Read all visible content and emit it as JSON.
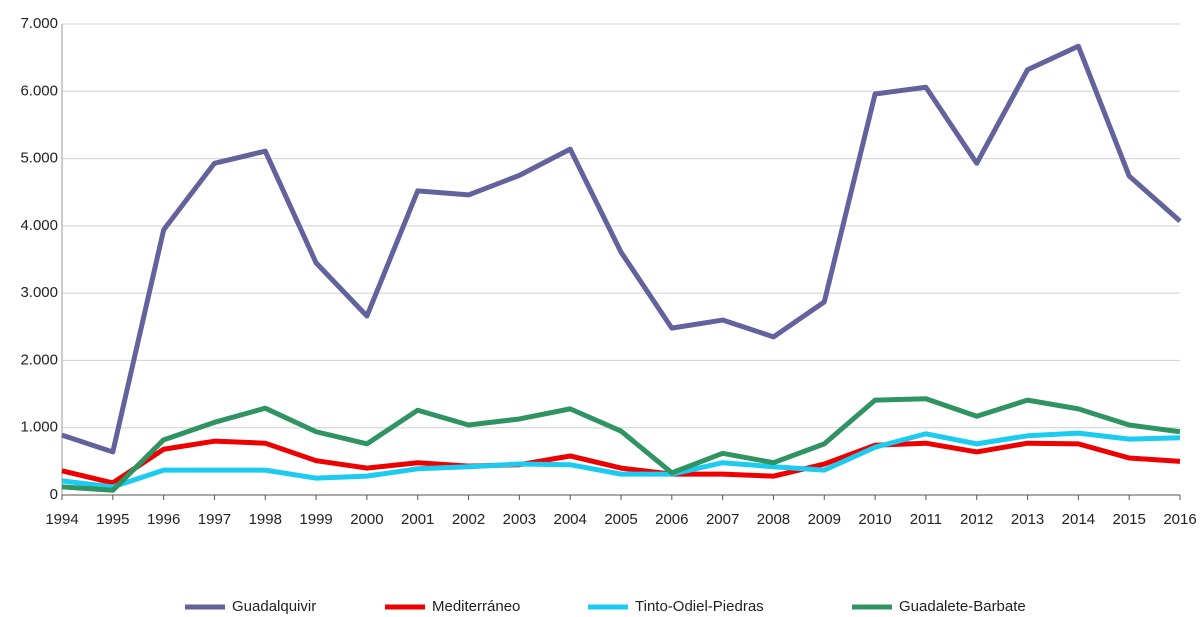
{
  "chart_data": {
    "type": "line",
    "categories": [
      "1994",
      "1995",
      "1996",
      "1997",
      "1998",
      "1999",
      "2000",
      "2001",
      "2002",
      "2003",
      "2004",
      "2005",
      "2006",
      "2007",
      "2008",
      "2009",
      "2010",
      "2011",
      "2012",
      "2013",
      "2014",
      "2015",
      "2016"
    ],
    "series": [
      {
        "name": "Guadalquivir",
        "color": "#62629c",
        "values": [
          890,
          640,
          3940,
          4930,
          5110,
          3450,
          2660,
          4520,
          4460,
          4750,
          5140,
          3610,
          2480,
          2600,
          2350,
          2870,
          5960,
          6060,
          4930,
          6320,
          6670,
          4740,
          4070
        ]
      },
      {
        "name": "Mediterráneo",
        "color": "#ee0000",
        "values": [
          360,
          180,
          680,
          800,
          770,
          510,
          400,
          480,
          430,
          450,
          580,
          400,
          310,
          310,
          280,
          460,
          740,
          770,
          640,
          770,
          760,
          550,
          500
        ]
      },
      {
        "name": "Tinto-Odiel-Piedras",
        "color": "#1ccbf0",
        "values": [
          210,
          120,
          370,
          370,
          370,
          250,
          280,
          390,
          420,
          460,
          450,
          310,
          310,
          480,
          420,
          370,
          710,
          910,
          760,
          880,
          920,
          830,
          850
        ]
      },
      {
        "name": "Guadalete-Barbate",
        "color": "#2f9462",
        "values": [
          120,
          70,
          820,
          1080,
          1290,
          940,
          760,
          1260,
          1040,
          1130,
          1280,
          950,
          330,
          620,
          480,
          760,
          1410,
          1430,
          1170,
          1410,
          1280,
          1040,
          940
        ]
      }
    ],
    "ylim": [
      0,
      7000
    ],
    "yticks": [
      0,
      {
        "value": 1000,
        "label": "1.000"
      },
      {
        "value": 2000,
        "label": "2.000"
      },
      {
        "value": 3000,
        "label": "3.000"
      },
      {
        "value": 4000,
        "label": "4.000"
      },
      {
        "value": 5000,
        "label": "5.000"
      },
      {
        "value": 6000,
        "label": "6.000"
      },
      {
        "value": 7000,
        "label": "7.000"
      }
    ],
    "grid": true,
    "legend": "bottom"
  }
}
